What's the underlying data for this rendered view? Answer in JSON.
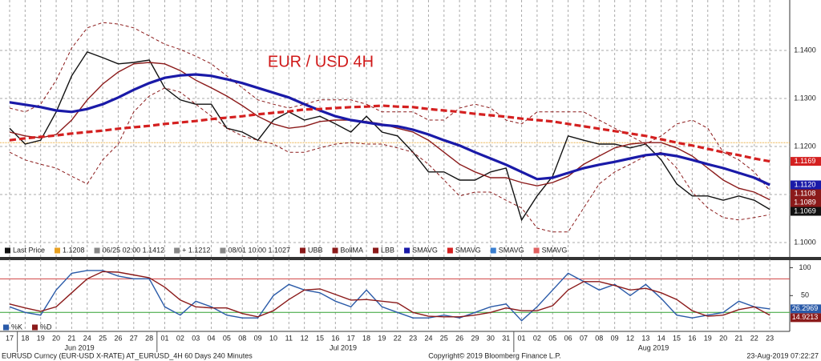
{
  "chart_data": [
    {
      "type": "line",
      "title": "EUR / USD 4H",
      "categories": [
        "17",
        "18",
        "19",
        "20",
        "21",
        "24",
        "25",
        "26",
        "27",
        "28",
        "01",
        "02",
        "03",
        "04",
        "05",
        "08",
        "09",
        "10",
        "11",
        "12",
        "15",
        "16",
        "17",
        "18",
        "19",
        "22",
        "23",
        "24",
        "25",
        "26",
        "29",
        "30",
        "31",
        "01",
        "02",
        "05",
        "06",
        "07",
        "08",
        "09",
        "12",
        "13",
        "14",
        "15",
        "16",
        "19",
        "20",
        "21",
        "22",
        "23"
      ],
      "month_labels": [
        "Jun 2019",
        "Jul 2019",
        "Aug 2019"
      ],
      "ylim": [
        1.0975,
        1.1505
      ],
      "yticks": [
        {
          "value": 1.1,
          "label": "1.1000"
        },
        {
          "value": 1.11,
          "label": "1.1100"
        },
        {
          "value": 1.12,
          "label": "1.1200"
        },
        {
          "value": 1.13,
          "label": "1.1300"
        },
        {
          "value": 1.14,
          "label": "1.1400"
        }
      ],
      "grid": true,
      "ref_line": 1.1208,
      "ref_color": "#e8a020",
      "annotations": [
        "06/25 02:00 1.1412",
        "+ 1.1212",
        "08/01 10:00 1.1027"
      ],
      "extra_legend": [
        {
          "name": "SMAVG",
          "color": "#3a7fd0"
        },
        {
          "name": "SMAVG",
          "color": "#e06060"
        }
      ],
      "series": [
        {
          "name": "Last Price",
          "color": "#111111",
          "line_style": "solid",
          "weight": "normal",
          "show_last": true,
          "values": [
            1.1238,
            1.1205,
            1.1213,
            1.1272,
            1.1347,
            1.1397,
            1.1385,
            1.1372,
            1.1375,
            1.138,
            1.1322,
            1.1297,
            1.1288,
            1.1288,
            1.1238,
            1.123,
            1.1213,
            1.1255,
            1.1272,
            1.1255,
            1.1263,
            1.1247,
            1.123,
            1.1263,
            1.123,
            1.1222,
            1.1188,
            1.1147,
            1.1147,
            1.113,
            1.113,
            1.1147,
            1.1155,
            1.1047,
            1.1097,
            1.1138,
            1.1222,
            1.1213,
            1.1205,
            1.1205,
            1.1197,
            1.1205,
            1.1172,
            1.1122,
            1.1097,
            1.1097,
            1.1088,
            1.1097,
            1.1088,
            1.1069
          ]
        },
        {
          "name": "UBB",
          "color": "#8b1a1a",
          "line_style": "dashed",
          "weight": "thin",
          "show_last": true,
          "values": [
            1.128,
            1.1272,
            1.1288,
            1.1338,
            1.1405,
            1.1447,
            1.1458,
            1.1455,
            1.1447,
            1.143,
            1.1413,
            1.1402,
            1.1388,
            1.1372,
            1.1347,
            1.1322,
            1.1297,
            1.1288,
            1.128,
            1.1288,
            1.1297,
            1.1297,
            1.1297,
            1.1288,
            1.1272,
            1.1272,
            1.1272,
            1.1255,
            1.1255,
            1.128,
            1.1288,
            1.128,
            1.1255,
            1.1247,
            1.1272,
            1.1272,
            1.1272,
            1.1272,
            1.1255,
            1.1238,
            1.1222,
            1.1205,
            1.1222,
            1.1247,
            1.1255,
            1.1238,
            1.1188,
            1.1172,
            1.1147,
            1.1108
          ]
        },
        {
          "name": "BollMA",
          "color": "#8b1a1a",
          "line_style": "solid",
          "weight": "normal",
          "show_last": true,
          "values": [
            1.123,
            1.1222,
            1.1218,
            1.1225,
            1.1255,
            1.1297,
            1.133,
            1.1355,
            1.1372,
            1.1375,
            1.1372,
            1.1358,
            1.1338,
            1.1322,
            1.1305,
            1.1285,
            1.1263,
            1.1247,
            1.1238,
            1.1242,
            1.1252,
            1.1255,
            1.1255,
            1.1252,
            1.1247,
            1.1238,
            1.123,
            1.1213,
            1.1188,
            1.1163,
            1.1147,
            1.1135,
            1.1135,
            1.1125,
            1.1118,
            1.1125,
            1.1138,
            1.1163,
            1.118,
            1.1197,
            1.1205,
            1.1208,
            1.1208,
            1.1197,
            1.118,
            1.1155,
            1.113,
            1.1113,
            1.1105,
            1.1089
          ]
        },
        {
          "name": "LBB",
          "color": "#8b1a1a",
          "line_style": "dashed",
          "weight": "thin",
          "show_last": false,
          "values": [
            1.1188,
            1.1172,
            1.1163,
            1.1155,
            1.1138,
            1.1122,
            1.1172,
            1.1205,
            1.1272,
            1.1305,
            1.1322,
            1.1313,
            1.1288,
            1.1263,
            1.1238,
            1.1222,
            1.1213,
            1.1205,
            1.1188,
            1.1188,
            1.1197,
            1.1205,
            1.1208,
            1.1205,
            1.1205,
            1.1197,
            1.1188,
            1.1163,
            1.113,
            1.1097,
            1.1105,
            1.1105,
            1.1088,
            1.1072,
            1.103,
            1.1022,
            1.1022,
            1.1072,
            1.1122,
            1.1147,
            1.1163,
            1.118,
            1.1188,
            1.1155,
            1.1105,
            1.1072,
            1.1052,
            1.1047,
            1.1052,
            1.1058
          ]
        },
        {
          "name": "SMAVG",
          "color": "#1a1aa8",
          "line_style": "solid",
          "weight": "bold",
          "show_last": true,
          "last_label": "1.1120",
          "values": [
            1.1292,
            1.1287,
            1.1282,
            1.1275,
            1.1272,
            1.1278,
            1.1288,
            1.1302,
            1.1318,
            1.1332,
            1.1343,
            1.1348,
            1.135,
            1.1347,
            1.134,
            1.1332,
            1.1322,
            1.1312,
            1.1302,
            1.1288,
            1.1275,
            1.1263,
            1.1255,
            1.125,
            1.1245,
            1.1242,
            1.1235,
            1.1225,
            1.1213,
            1.1202,
            1.1188,
            1.1175,
            1.1162,
            1.1147,
            1.1132,
            1.1135,
            1.1145,
            1.1155,
            1.1162,
            1.1168,
            1.1175,
            1.1182,
            1.1185,
            1.118,
            1.1172,
            1.1163,
            1.1155,
            1.1145,
            1.1135,
            1.112
          ]
        },
        {
          "name": "SMAVG",
          "color": "#d42020",
          "line_style": "dashed",
          "weight": "bold",
          "show_last": true,
          "values": [
            1.1213,
            1.1217,
            1.122,
            1.1223,
            1.1227,
            1.123,
            1.1233,
            1.1237,
            1.124,
            1.1243,
            1.1247,
            1.125,
            1.1253,
            1.1257,
            1.126,
            1.1263,
            1.1267,
            1.127,
            1.1273,
            1.1277,
            1.1278,
            1.128,
            1.1282,
            1.1283,
            1.1285,
            1.1283,
            1.1282,
            1.1278,
            1.1275,
            1.1272,
            1.1268,
            1.1265,
            1.1262,
            1.1258,
            1.1255,
            1.1252,
            1.1247,
            1.1242,
            1.1237,
            1.1232,
            1.1227,
            1.1222,
            1.1215,
            1.1208,
            1.1202,
            1.1195,
            1.1188,
            1.1182,
            1.1175,
            1.1169
          ]
        }
      ]
    },
    {
      "type": "line",
      "ylim": [
        -14,
        112
      ],
      "yticks": [
        100,
        50
      ],
      "levels": [
        80,
        20
      ],
      "level_colors": [
        "#d04040",
        "#30a030"
      ],
      "series": [
        {
          "name": "%K",
          "color": "#2a5aa8",
          "line_style": "solid",
          "weight": "normal",
          "show_last": true,
          "values": [
            30,
            20,
            15,
            60,
            90,
            95,
            95,
            85,
            80,
            80,
            30,
            15,
            40,
            30,
            15,
            10,
            10,
            50,
            70,
            60,
            55,
            40,
            30,
            60,
            30,
            20,
            10,
            10,
            15,
            10,
            20,
            30,
            35,
            5,
            30,
            60,
            90,
            75,
            60,
            70,
            50,
            70,
            45,
            15,
            10,
            15,
            20,
            40,
            30,
            26.2969
          ]
        },
        {
          "name": "%D",
          "color": "#8b1a1a",
          "line_style": "solid",
          "weight": "normal",
          "show_last": true,
          "values": [
            35,
            28,
            22,
            30,
            55,
            80,
            93,
            92,
            87,
            82,
            65,
            42,
            30,
            28,
            28,
            18,
            12,
            23,
            43,
            60,
            62,
            52,
            42,
            43,
            40,
            37,
            20,
            13,
            12,
            12,
            15,
            20,
            28,
            23,
            23,
            32,
            60,
            75,
            75,
            68,
            60,
            63,
            55,
            43,
            23,
            13,
            15,
            25,
            30,
            14.9213
          ]
        }
      ]
    }
  ],
  "footer": {
    "left": "EURUSD Curncy (EUR-USD X-RATE) AT_EURUSD_4H 60 Days 240 Minutes",
    "center": "Copyright© 2019 Bloomberg Finance L.P.",
    "right": "23-Aug-2019 07:22:27"
  }
}
